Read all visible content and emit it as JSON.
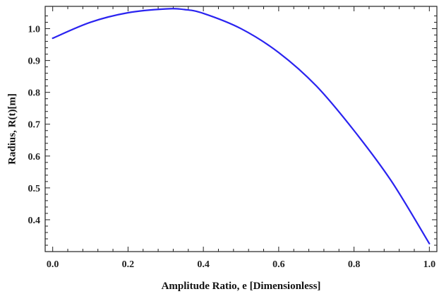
{
  "chart_data": {
    "type": "line",
    "title": "",
    "xlabel": "Amplitude Ratio, e [Dimensionless]",
    "ylabel": "Radius,  R(t)[m]",
    "xlim": [
      -0.02,
      1.02
    ],
    "ylim": [
      0.3,
      1.07
    ],
    "grid": false,
    "legend": "none",
    "x_ticks": [
      {
        "value": 0.0,
        "label": "0.0"
      },
      {
        "value": 0.2,
        "label": "0.2"
      },
      {
        "value": 0.4,
        "label": "0.4"
      },
      {
        "value": 0.6,
        "label": "0.6"
      },
      {
        "value": 0.8,
        "label": "0.8"
      },
      {
        "value": 1.0,
        "label": "1.0"
      }
    ],
    "y_ticks": [
      {
        "value": 0.4,
        "label": "0.4"
      },
      {
        "value": 0.5,
        "label": "0.5"
      },
      {
        "value": 0.6,
        "label": "0.6"
      },
      {
        "value": 0.7,
        "label": "0.7"
      },
      {
        "value": 0.8,
        "label": "0.8"
      },
      {
        "value": 0.9,
        "label": "0.9"
      },
      {
        "value": 1.0,
        "label": "1.0"
      }
    ],
    "series": [
      {
        "color": "#2a23f0",
        "x": [
          0.0,
          0.1,
          0.2,
          0.3,
          0.35,
          0.4,
          0.5,
          0.6,
          0.7,
          0.8,
          0.9,
          1.0
        ],
        "y": [
          0.97,
          1.02,
          1.05,
          1.062,
          1.06,
          1.048,
          1.0,
          0.925,
          0.82,
          0.68,
          0.52,
          0.325
        ]
      }
    ]
  }
}
